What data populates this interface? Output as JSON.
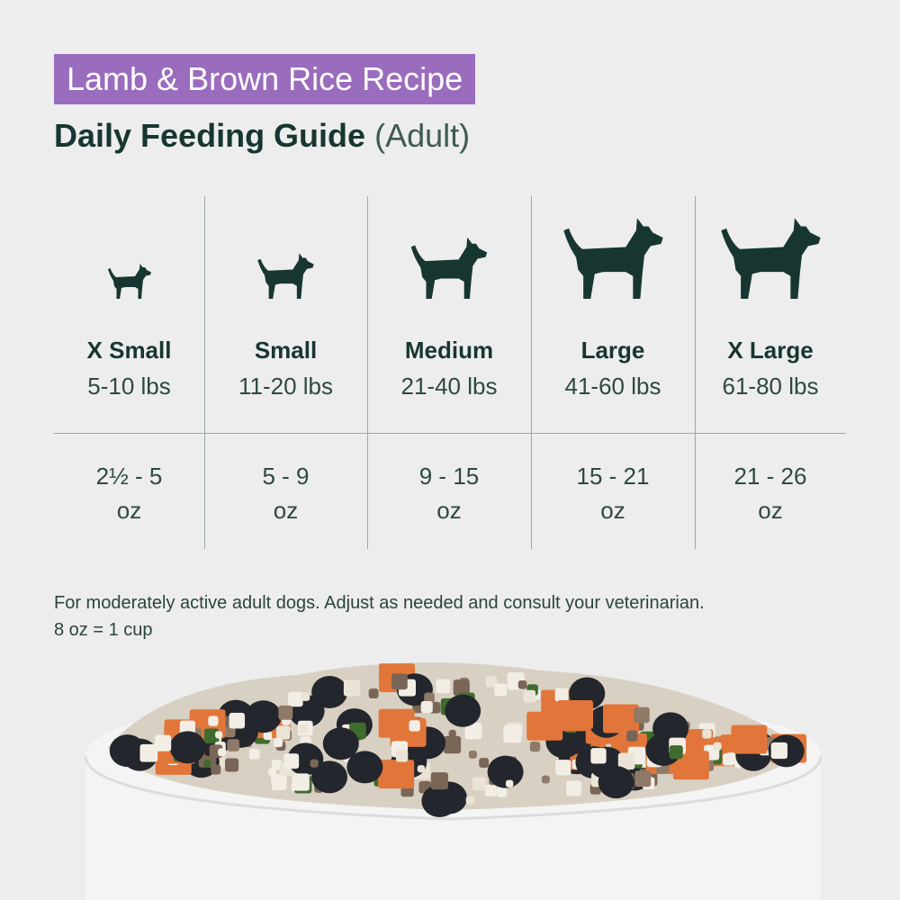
{
  "header": {
    "badge": "Lamb & Brown Rice Recipe",
    "title": "Daily Feeding Guide",
    "title_suffix": "(Adult)"
  },
  "columns": [
    {
      "size": "X Small",
      "weight": "5-10 lbs",
      "amount": "2½ - 5",
      "unit": "oz"
    },
    {
      "size": "Small",
      "weight": "11-20 lbs",
      "amount": "5 - 9",
      "unit": "oz"
    },
    {
      "size": "Medium",
      "weight": "21-40 lbs",
      "amount": "9 - 15",
      "unit": "oz"
    },
    {
      "size": "Large",
      "weight": "41-60 lbs",
      "amount": "15 - 21",
      "unit": "oz"
    },
    {
      "size": "X Large",
      "weight": "61-80 lbs",
      "amount": "21 - 26",
      "unit": "oz"
    }
  ],
  "note": [
    "For moderately active adult dogs. Adjust as needed and consult your veterinarian.",
    "8 oz = 1 cup"
  ]
}
